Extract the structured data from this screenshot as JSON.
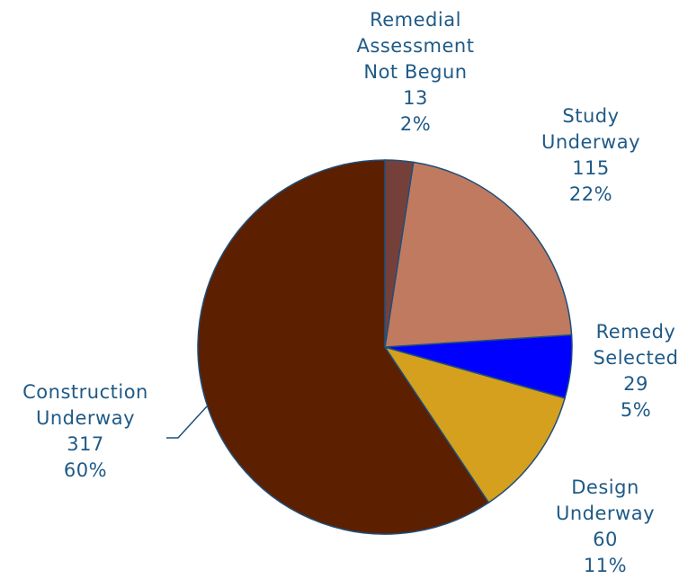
{
  "chart_data": {
    "type": "pie",
    "categories": [
      "Remedial\nAssessment\nNot Begun",
      "Study\nUnderway",
      "Remedy\nSelected",
      "Design\nUnderway",
      "Construction\nUnderway"
    ],
    "values": [
      13,
      115,
      29,
      60,
      317
    ],
    "percent_labels": [
      "2%",
      "22%",
      "5%",
      "11%",
      "60%"
    ],
    "colors": [
      "#76403a",
      "#c07a60",
      "#0000ff",
      "#d4a01e",
      "#5c1f00"
    ]
  }
}
